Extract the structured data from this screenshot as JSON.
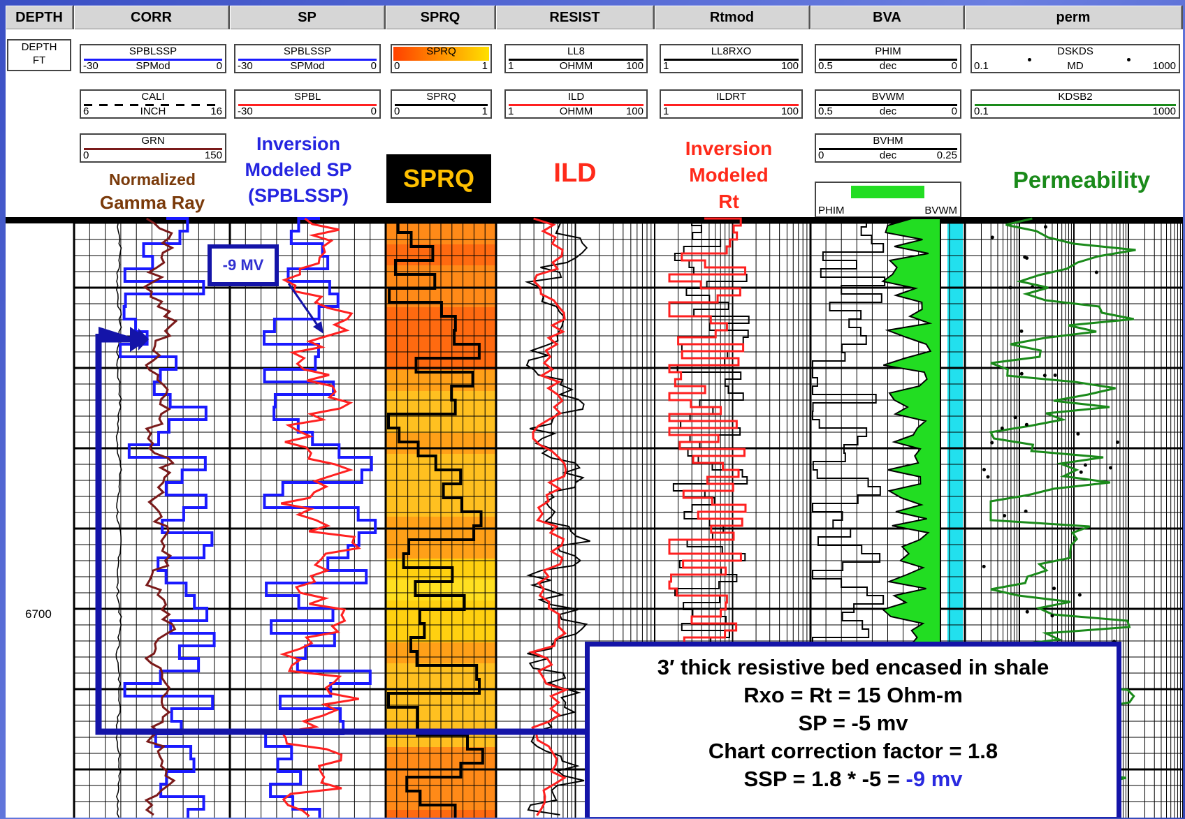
{
  "tracks": [
    {
      "name": "DEPTH",
      "x0": 0,
      "x1": 98
    },
    {
      "name": "CORR",
      "x0": 98,
      "x1": 321
    },
    {
      "name": "SP",
      "x0": 321,
      "x1": 544
    },
    {
      "name": "SPRQ",
      "x0": 544,
      "x1": 702
    },
    {
      "name": "RESIST",
      "x0": 702,
      "x1": 929
    },
    {
      "name": "Rtmod",
      "x0": 929,
      "x1": 1152
    },
    {
      "name": "BVA",
      "x0": 1152,
      "x1": 1373
    },
    {
      "name": "perm",
      "x0": 1373,
      "x1": 1685
    }
  ],
  "depth_header": {
    "line1": "DEPTH",
    "line2": "FT"
  },
  "curve_headers": {
    "corr": [
      {
        "name": "SPBLSSP",
        "lo": "-30",
        "unit": "SPMod",
        "hi": "0",
        "color": "#1a1aff"
      },
      {
        "name": "CALI",
        "lo": "6",
        "unit": "INCH",
        "hi": "16",
        "color": "#000000",
        "dashed": true
      },
      {
        "name": "GRN",
        "lo": "0",
        "unit": "",
        "hi": "150",
        "color": "#7a1a1a"
      }
    ],
    "sp": [
      {
        "name": "SPBLSSP",
        "lo": "-30",
        "unit": "SPMod",
        "hi": "0",
        "color": "#1a1aff"
      },
      {
        "name": "SPBL",
        "lo": "-30",
        "unit": "",
        "hi": "0",
        "color": "#ff2020"
      }
    ],
    "sprq": [
      {
        "name": "SPRQ",
        "lo": "0",
        "unit": "",
        "hi": "1",
        "color": "gradient"
      },
      {
        "name": "SPRQ",
        "lo": "0",
        "unit": "",
        "hi": "1",
        "color": "#000000"
      }
    ],
    "resist": [
      {
        "name": "LL8",
        "lo": "1",
        "unit": "OHMM",
        "hi": "100",
        "color": "#000000"
      },
      {
        "name": "ILD",
        "lo": "1",
        "unit": "OHMM",
        "hi": "100",
        "color": "#ff2020"
      }
    ],
    "rtmod": [
      {
        "name": "LL8RXO",
        "lo": "1",
        "unit": "",
        "hi": "100",
        "color": "#000000"
      },
      {
        "name": "ILDRT",
        "lo": "1",
        "unit": "",
        "hi": "100",
        "color": "#ff2020"
      }
    ],
    "bva": [
      {
        "name": "PHIM",
        "lo": "0.5",
        "unit": "dec",
        "hi": "0",
        "color": "#000000"
      },
      {
        "name": "BVWM",
        "lo": "0.5",
        "unit": "dec",
        "hi": "0",
        "color": "#000000"
      },
      {
        "name": "BVHM",
        "lo": "0",
        "unit": "dec",
        "hi": "0.25",
        "color": "#000000"
      }
    ],
    "perm": [
      {
        "name": "DSKDS",
        "lo": "0.1",
        "unit": "MD",
        "hi": "1000",
        "color": "#000000",
        "dotted": true
      },
      {
        "name": "KDSB2",
        "lo": "0.1",
        "unit": "",
        "hi": "1000",
        "color": "#1a8a1a"
      }
    ],
    "bva_fill": {
      "left": "PHIM",
      "right": "BVWM",
      "color": "#22dd22"
    }
  },
  "labels": {
    "gr": [
      "Normalized",
      "Gamma Ray"
    ],
    "sp": [
      "Inversion",
      "Modeled SP",
      "(SPBLSSP)"
    ],
    "sprq": "SPRQ",
    "ild": "ILD",
    "rt": [
      "Inversion",
      "Modeled",
      "Rt"
    ],
    "perm": "Permeability"
  },
  "depth_label": "6700",
  "callout_mv": "-9 MV",
  "annotation": {
    "line1": "3′ thick resistive bed encased in shale",
    "line2": "Rxo = Rt = 15 Ohm-m",
    "line3": "SP = -5 mv",
    "line4": "Chart correction factor = 1.8",
    "line5a": "SSP = 1.8 * -5 = ",
    "line5b": "-9 mv"
  },
  "colors": {
    "blue": "#1a1aff",
    "red": "#ff2020",
    "brown": "#7a1a1a",
    "green": "#1a8a1a",
    "cyan": "#22e0ee",
    "fill_green": "#22dd22",
    "navy": "#1414a8"
  },
  "chart_data": {
    "type": "line",
    "title": "",
    "depth_marker": 6700,
    "series": [
      {
        "name": "GRN",
        "track": "CORR"
      },
      {
        "name": "SPBLSSP",
        "track": "CORR"
      },
      {
        "name": "CALI",
        "track": "CORR"
      },
      {
        "name": "SPBLSSP",
        "track": "SP"
      },
      {
        "name": "SPBL",
        "track": "SP"
      },
      {
        "name": "SPRQ",
        "track": "SPRQ"
      },
      {
        "name": "LL8",
        "track": "RESIST"
      },
      {
        "name": "ILD",
        "track": "RESIST"
      },
      {
        "name": "LL8RXO",
        "track": "Rtmod"
      },
      {
        "name": "ILDRT",
        "track": "Rtmod"
      },
      {
        "name": "PHIM",
        "track": "BVA"
      },
      {
        "name": "BVWM",
        "track": "BVA"
      },
      {
        "name": "DSKDS",
        "track": "perm"
      },
      {
        "name": "KDSB2",
        "track": "perm"
      }
    ]
  }
}
